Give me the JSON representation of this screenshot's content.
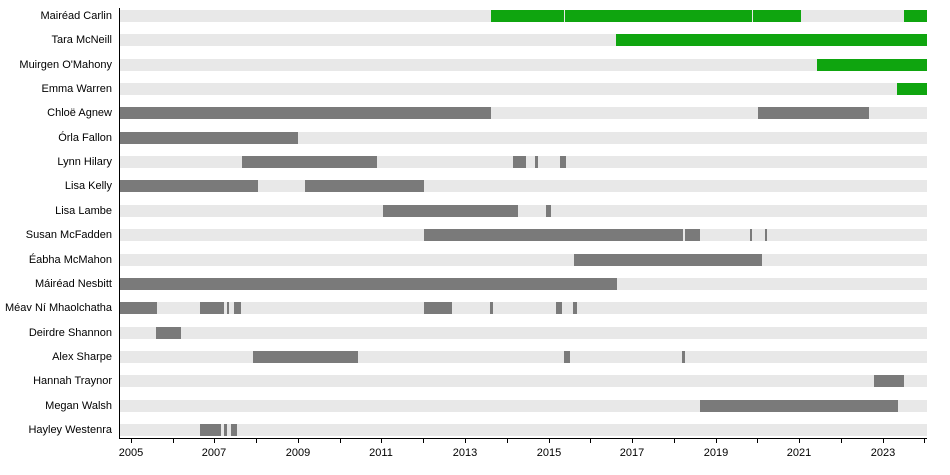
{
  "chart_data": {
    "type": "timeline",
    "x_axis": {
      "min": 2004.74,
      "max": 2024.06,
      "tick_years": [
        2005,
        2006,
        2007,
        2008,
        2009,
        2010,
        2011,
        2012,
        2013,
        2014,
        2015,
        2016,
        2017,
        2018,
        2019,
        2020,
        2021,
        2022,
        2023,
        2024
      ],
      "label_years": [
        2005,
        2007,
        2009,
        2011,
        2013,
        2015,
        2017,
        2019,
        2021,
        2023
      ]
    },
    "colors": {
      "current": "#0fa50f",
      "former": "#7a7a7a",
      "track": "#e8e8e8",
      "axis": "#000000"
    },
    "rows": [
      {
        "label": "Mairéad Carlin",
        "status": "current",
        "segments": [
          [
            2013.62,
            2015.36
          ],
          [
            2015.4,
            2019.86
          ],
          [
            2019.9,
            2021.04
          ],
          [
            2023.51,
            2024.06
          ]
        ]
      },
      {
        "label": "Tara McNeill",
        "status": "current",
        "segments": [
          [
            2016.62,
            2024.06
          ]
        ]
      },
      {
        "label": "Muirgen O'Mahony",
        "status": "current",
        "segments": [
          [
            2021.42,
            2024.06
          ]
        ]
      },
      {
        "label": "Emma Warren",
        "status": "current",
        "segments": [
          [
            2023.34,
            2024.06
          ]
        ]
      },
      {
        "label": "Chloë Agnew",
        "status": "former",
        "segments": [
          [
            2004.74,
            2013.63
          ],
          [
            2020.02,
            2022.66
          ]
        ]
      },
      {
        "label": "Órla Fallon",
        "status": "former",
        "segments": [
          [
            2004.74,
            2009.0
          ]
        ]
      },
      {
        "label": "Lynn Hilary",
        "status": "former",
        "segments": [
          [
            2007.66,
            2010.89
          ],
          [
            2014.16,
            2014.46
          ],
          [
            2014.68,
            2014.74
          ],
          [
            2015.28,
            2015.42
          ]
        ]
      },
      {
        "label": "Lisa Kelly",
        "status": "former",
        "segments": [
          [
            2004.74,
            2008.04
          ],
          [
            2009.16,
            2012.01
          ]
        ]
      },
      {
        "label": "Lisa Lambe",
        "status": "former",
        "segments": [
          [
            2011.03,
            2014.28
          ],
          [
            2014.93,
            2015.05
          ]
        ]
      },
      {
        "label": "Susan McFadden",
        "status": "former",
        "segments": [
          [
            2012.01,
            2018.21
          ],
          [
            2018.26,
            2018.63
          ],
          [
            2019.82,
            2019.88
          ],
          [
            2020.17,
            2020.23
          ]
        ]
      },
      {
        "label": "Éabha McMahon",
        "status": "former",
        "segments": [
          [
            2015.6,
            2020.1
          ]
        ]
      },
      {
        "label": "Máiréad Nesbitt",
        "status": "former",
        "segments": [
          [
            2004.74,
            2016.63
          ]
        ]
      },
      {
        "label": "Méav Ní Mhaolchatha",
        "status": "former",
        "segments": [
          [
            2004.74,
            2005.63
          ],
          [
            2006.65,
            2007.22
          ],
          [
            2007.29,
            2007.36
          ],
          [
            2007.48,
            2007.64
          ],
          [
            2012.01,
            2012.69
          ],
          [
            2013.6,
            2013.67
          ],
          [
            2015.18,
            2015.32
          ],
          [
            2015.58,
            2015.67
          ]
        ]
      },
      {
        "label": "Deirdre Shannon",
        "status": "former",
        "segments": [
          [
            2005.6,
            2006.21
          ]
        ]
      },
      {
        "label": "Alex Sharpe",
        "status": "former",
        "segments": [
          [
            2007.93,
            2010.45
          ],
          [
            2015.36,
            2015.51
          ],
          [
            2018.19,
            2018.26
          ]
        ]
      },
      {
        "label": "Hannah Traynor",
        "status": "former",
        "segments": [
          [
            2022.78,
            2023.5
          ]
        ]
      },
      {
        "label": "Megan Walsh",
        "status": "former",
        "segments": [
          [
            2018.63,
            2023.36
          ]
        ]
      },
      {
        "label": "Hayley Westenra",
        "status": "former",
        "segments": [
          [
            2006.66,
            2007.17
          ],
          [
            2007.23,
            2007.31
          ],
          [
            2007.39,
            2007.55
          ]
        ]
      }
    ]
  }
}
